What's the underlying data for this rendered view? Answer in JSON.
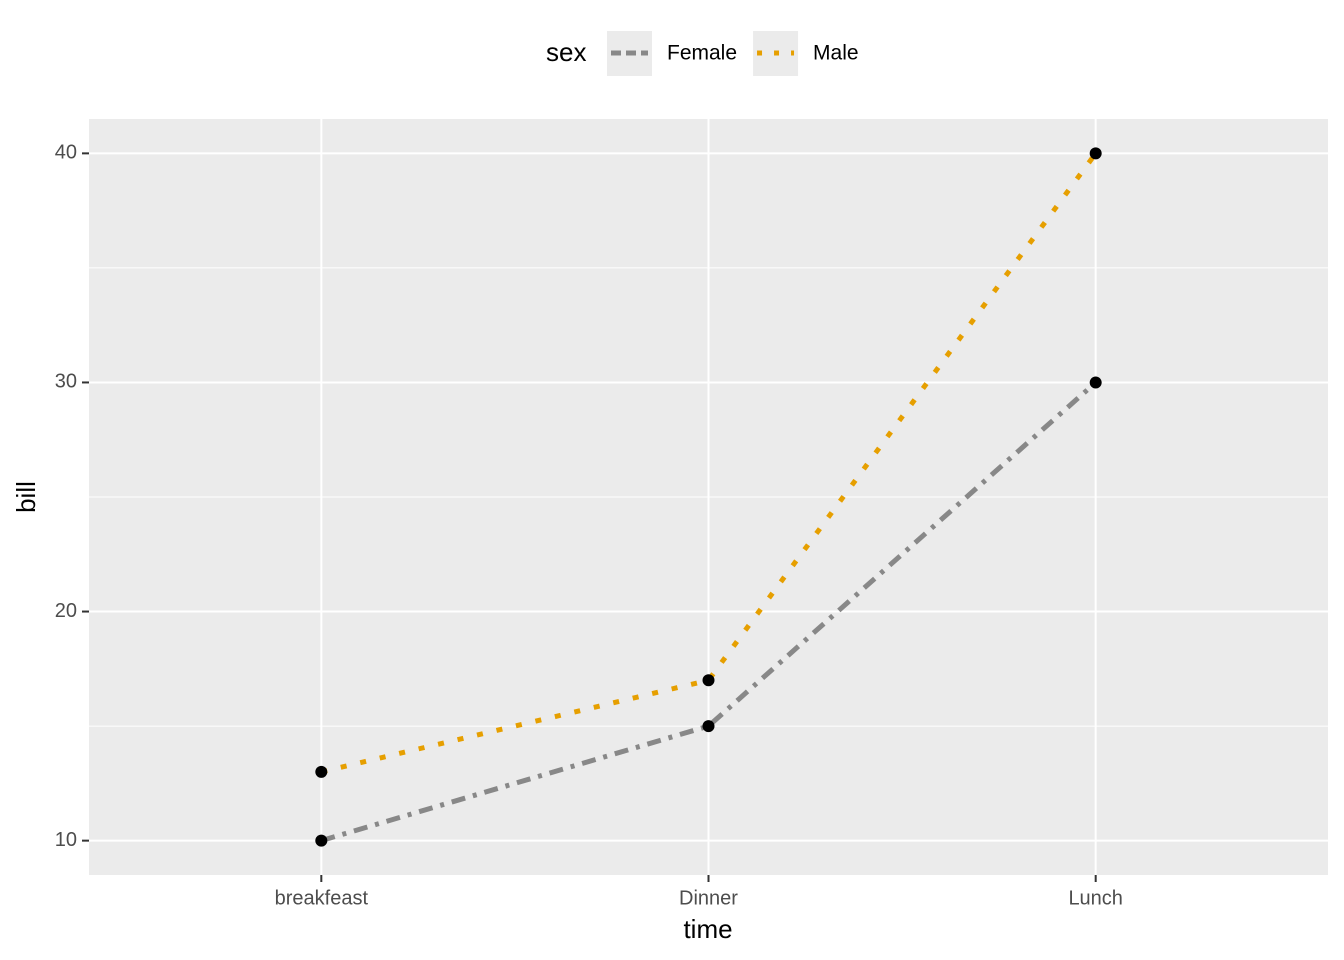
{
  "chart_data": {
    "type": "line",
    "x_label": "time",
    "y_label": "bill",
    "legend_title": "sex",
    "legend_position": "top",
    "categories": [
      "breakfeast",
      "Dinner",
      "Lunch"
    ],
    "series": [
      {
        "name": "Female",
        "color": "#888888",
        "linestyle": "dashed",
        "values": [
          10,
          15,
          30
        ]
      },
      {
        "name": "Male",
        "color": "#e69f00",
        "linestyle": "dotted",
        "values": [
          13,
          17,
          40
        ]
      }
    ],
    "marker_color": "#000000",
    "ylim": [
      8.5,
      41.5
    ],
    "yticks": [
      10,
      20,
      30,
      40
    ],
    "grid": true
  }
}
